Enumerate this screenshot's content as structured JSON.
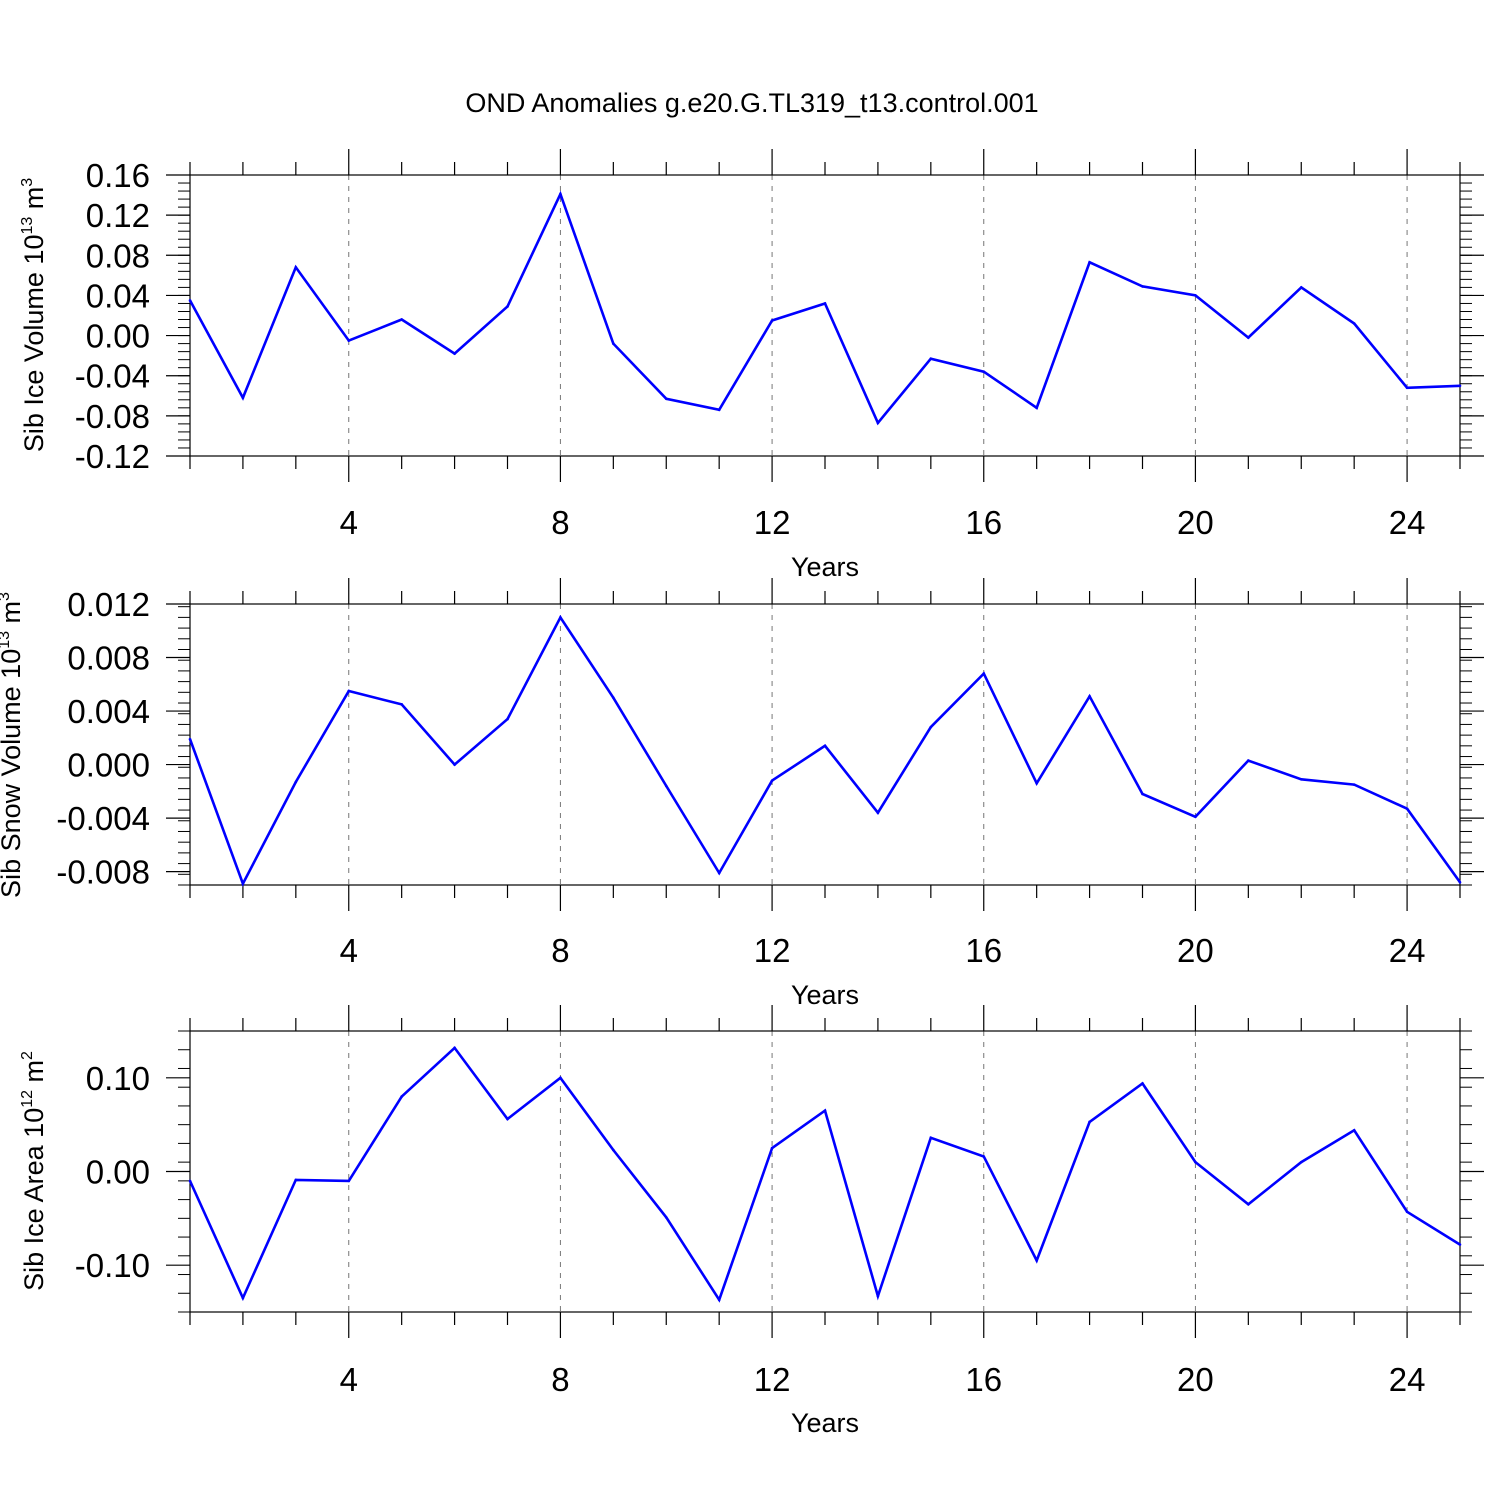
{
  "title": "OND Anomalies g.e20.G.TL319_t13.control.001",
  "line_color": "#0000ff",
  "chart_data": [
    {
      "type": "line",
      "title": "OND Anomalies g.e20.G.TL319_t13.control.001",
      "xlabel": "Years",
      "ylabel": "Sib Ice Volume 10",
      "ylabel_exp": "13",
      "ylabel_unit": "m",
      "ylabel_unit_exp": "3",
      "xlim": [
        1,
        25
      ],
      "ylim": [
        -0.12,
        0.16
      ],
      "xticks": [
        4,
        8,
        12,
        16,
        20,
        24
      ],
      "yticks": [
        -0.12,
        -0.08,
        -0.04,
        0.0,
        0.04,
        0.08,
        0.12,
        0.16
      ],
      "ytick_labels": [
        "-0.12",
        "-0.08",
        "-0.04",
        "0.00",
        "0.04",
        "0.08",
        "0.12",
        "0.16"
      ],
      "grid": "vertical dashed at major x ticks",
      "x": [
        1,
        2,
        3,
        4,
        5,
        6,
        7,
        8,
        9,
        10,
        11,
        12,
        13,
        14,
        15,
        16,
        17,
        18,
        19,
        20,
        21,
        22,
        23,
        24,
        25
      ],
      "values": [
        0.035,
        -0.062,
        0.068,
        -0.005,
        0.016,
        -0.018,
        0.029,
        0.141,
        -0.008,
        -0.063,
        -0.074,
        0.015,
        0.032,
        -0.087,
        -0.023,
        -0.036,
        -0.072,
        0.073,
        0.049,
        0.04,
        -0.002,
        0.048,
        0.012,
        -0.052,
        -0.05
      ]
    },
    {
      "type": "line",
      "xlabel": "Years",
      "ylabel": "Sib Snow Volume 10",
      "ylabel_exp": "13",
      "ylabel_unit": "m",
      "ylabel_unit_exp": "3",
      "xlim": [
        1,
        25
      ],
      "ylim": [
        -0.009,
        0.012
      ],
      "xticks": [
        4,
        8,
        12,
        16,
        20,
        24
      ],
      "yticks": [
        -0.008,
        -0.004,
        0.0,
        0.004,
        0.008,
        0.012
      ],
      "ytick_labels": [
        "-0.008",
        "-0.004",
        "0.000",
        "0.004",
        "0.008",
        "0.012"
      ],
      "grid": "vertical dashed at major x ticks",
      "x": [
        1,
        2,
        3,
        4,
        5,
        6,
        7,
        8,
        9,
        10,
        11,
        12,
        13,
        14,
        15,
        16,
        17,
        18,
        19,
        20,
        21,
        22,
        23,
        24,
        25
      ],
      "values": [
        0.0019,
        -0.0089,
        -0.0013,
        0.0055,
        0.0045,
        0.0,
        0.0034,
        0.011,
        0.005,
        -0.0016,
        -0.0081,
        -0.0012,
        0.0014,
        -0.0036,
        0.0028,
        0.0068,
        -0.0014,
        0.0051,
        -0.0022,
        -0.0039,
        0.0003,
        -0.0011,
        -0.0015,
        -0.0033,
        -0.0088
      ]
    },
    {
      "type": "line",
      "xlabel": "Years",
      "ylabel": "Sib Ice Area 10",
      "ylabel_exp": "12",
      "ylabel_unit": "m",
      "ylabel_unit_exp": "2",
      "xlim": [
        1,
        25
      ],
      "ylim": [
        -0.15,
        0.15
      ],
      "xticks": [
        4,
        8,
        12,
        16,
        20,
        24
      ],
      "yticks": [
        -0.1,
        0.0,
        0.1
      ],
      "ytick_labels": [
        "-0.10",
        "0.00",
        "0.10"
      ],
      "grid": "vertical dashed at major x ticks",
      "x": [
        1,
        2,
        3,
        4,
        5,
        6,
        7,
        8,
        9,
        10,
        11,
        12,
        13,
        14,
        15,
        16,
        17,
        18,
        19,
        20,
        21,
        22,
        23,
        24,
        25
      ],
      "values": [
        -0.01,
        -0.135,
        -0.009,
        -0.01,
        0.08,
        0.132,
        0.056,
        0.1,
        0.023,
        -0.049,
        -0.137,
        0.025,
        0.065,
        -0.133,
        0.036,
        0.016,
        -0.095,
        0.053,
        0.094,
        0.01,
        -0.035,
        0.01,
        0.044,
        -0.043,
        -0.078
      ]
    }
  ]
}
